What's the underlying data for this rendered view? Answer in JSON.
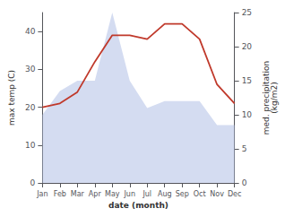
{
  "chart_data": {
    "type": "line",
    "xlabel": "date (month)",
    "ylabel": "max temp (C)",
    "y2label": "med. precipitation\n(kg/m2)",
    "categories": [
      "Jan",
      "Feb",
      "Mar",
      "Apr",
      "May",
      "Jun",
      "Jul",
      "Aug",
      "Sep",
      "Oct",
      "Nov",
      "Dec"
    ],
    "series": [
      {
        "type": "area",
        "color": "#b8c4e8",
        "axis": "y2",
        "values": [
          10,
          13.5,
          15,
          15,
          25,
          15,
          11,
          12,
          12,
          12,
          8.5,
          8.5
        ]
      },
      {
        "type": "line",
        "color": "#c0392b",
        "values": [
          20,
          21,
          24,
          32,
          39,
          39,
          38,
          42,
          42,
          38,
          26,
          21
        ]
      }
    ],
    "ylim": [
      0,
      45
    ],
    "yticks": [
      0,
      10,
      20,
      30,
      40
    ],
    "y2lim": [
      0,
      25
    ],
    "y2ticks": [
      0,
      5,
      10,
      15,
      20,
      25
    ],
    "grid": false
  }
}
